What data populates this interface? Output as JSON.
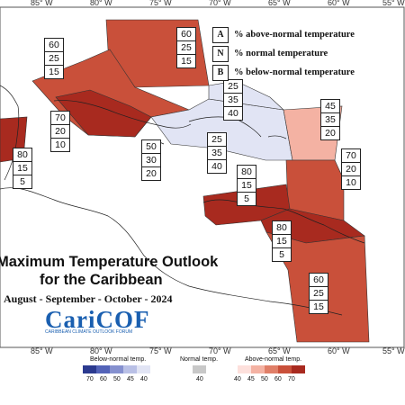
{
  "legend": {
    "items": [
      {
        "key": "A",
        "text": "% above-normal temperature"
      },
      {
        "key": "N",
        "text": "% normal temperature"
      },
      {
        "key": "B",
        "text": "% below-normal temperature"
      }
    ]
  },
  "longitude_labels_top": [
    "85° W",
    "80° W",
    "75° W",
    "70° W",
    "65° W",
    "60° W",
    "55° W"
  ],
  "longitude_labels_bottom": [
    "85° W",
    "80° W",
    "75° W",
    "70° W",
    "65° W",
    "60° W",
    "55° W"
  ],
  "title_line1": "Maximum Temperature Outlook",
  "title_line2": "for the Caribbean",
  "period": "August - September - October - 2024",
  "logo": {
    "main": "CariCOF",
    "sub": "CARIBBEAN CLIMATE OUTLOOK FORUM"
  },
  "colorbar": {
    "below_label": "Below-normal temp.",
    "normal_label": "Normal temp.",
    "above_label": "Above-normal temp.",
    "below_ticks": [
      "70",
      "60",
      "50",
      "45",
      "40"
    ],
    "normal_ticks": [
      "40"
    ],
    "above_ticks": [
      "40",
      "45",
      "50",
      "60",
      "70"
    ],
    "below_colors": [
      "#2b3a8f",
      "#5363b8",
      "#8590cf",
      "#b9c0e6",
      "#e1e4f4"
    ],
    "normal_color": "#c8c8c8",
    "above_colors": [
      "#fde0dc",
      "#f4b2a3",
      "#e07f68",
      "#c9503a",
      "#a82a1f"
    ]
  },
  "probability_boxes": [
    {
      "id": "bahamas-north",
      "A": "60",
      "N": "25",
      "B": "15"
    },
    {
      "id": "gulf-northwest",
      "A": "60",
      "N": "25",
      "B": "15"
    },
    {
      "id": "cuba-central",
      "A": "70",
      "N": "20",
      "B": "10"
    },
    {
      "id": "yucatan",
      "A": "80",
      "N": "15",
      "B": "5"
    },
    {
      "id": "jamaica",
      "A": "50",
      "N": "30",
      "B": "20"
    },
    {
      "id": "turks-caicos",
      "A": "25",
      "N": "35",
      "B": "40"
    },
    {
      "id": "hispaniola",
      "A": "25",
      "N": "35",
      "B": "40"
    },
    {
      "id": "lesser-antilles-north",
      "A": "45",
      "N": "35",
      "B": "20"
    },
    {
      "id": "lesser-antilles-south",
      "A": "70",
      "N": "20",
      "B": "10"
    },
    {
      "id": "abc-islands",
      "A": "80",
      "N": "15",
      "B": "5"
    },
    {
      "id": "trinidad",
      "A": "80",
      "N": "15",
      "B": "5"
    },
    {
      "id": "guianas",
      "A": "60",
      "N": "25",
      "B": "15"
    }
  ],
  "colors": {
    "dark_red": "#a82a1f",
    "mid_red": "#c9503a",
    "light_salmon": "#f4b2a3",
    "pale_blue": "#e1e4f4",
    "logo_blue": "#1a5fb0"
  }
}
